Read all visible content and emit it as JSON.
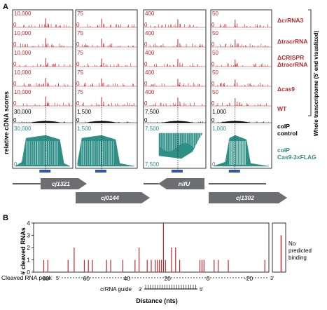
{
  "figure": {
    "panel_a_letter": "A",
    "panel_b_letter": "B",
    "colors": {
      "red": "#c0282d",
      "teal": "#2e8f86",
      "black": "#000000",
      "gray": "#6d6e71"
    }
  },
  "panel_a": {
    "ylabel": "relative cDNA scores",
    "right_bracket_label": "Whole transcriptome (5' end visualized)",
    "row_labels": [
      "ΔcrRNA3",
      "ΔtracrRNA",
      "ΔCRISPR ΔtracrRNA",
      "Δcas9",
      "WT",
      "coIP control",
      "coIP Cas9-3xFLAG"
    ],
    "row_labels_lines": [
      [
        "ΔcrRNA3"
      ],
      [
        "ΔtracrRNA"
      ],
      [
        "ΔCRISPR",
        "ΔtracrRNA"
      ],
      [
        "Δcas9"
      ],
      [
        "WT"
      ],
      [
        "coIP",
        "control"
      ],
      [
        "coIP",
        "Cas9-3xFLAG"
      ]
    ],
    "columns": [
      {
        "scale_labels": [
          "10,000",
          "10,000",
          "10,000",
          "10,000",
          "10,000",
          "30,000",
          "30,000"
        ],
        "zero_label": "0",
        "bottom_label": "0"
      },
      {
        "scale_labels": [
          "75",
          "75",
          "75",
          "75",
          "75",
          "1,500",
          "1,500"
        ],
        "zero_label": "0",
        "bottom_label": "0"
      },
      {
        "scale_labels": [
          "400",
          "400",
          "400",
          "400",
          "400",
          "7,500",
          "7,500"
        ],
        "zero_label": "0",
        "bottom_label": "7,500"
      },
      {
        "scale_labels": [
          "50",
          "50",
          "50",
          "50",
          "50",
          "1,000",
          "1,000"
        ],
        "zero_label": "0",
        "bottom_label": "0"
      }
    ],
    "genes": [
      "cj1321",
      "cj0144",
      "nifU",
      "cj1302"
    ]
  },
  "panel_b": {
    "ylabel": "# cleaved RNAs",
    "xlabel": "Distance (nts)",
    "peak_label": "Cleaved RNA peak",
    "guide_label": "crRNA guide",
    "five_prime": "5'",
    "three_prime": "3'",
    "side_label": "No predicted binding"
  },
  "chart_data": {
    "type": "bar",
    "title": "",
    "xlabel": "Distance (nts)",
    "ylabel": "# cleaved RNAs",
    "ylim": [
      0,
      4
    ],
    "yticks": [
      0,
      1,
      2,
      3,
      4
    ],
    "xlim": [
      86,
      -30
    ],
    "xticks": [
      80,
      60,
      40,
      20,
      0,
      -20
    ],
    "x": [
      81,
      79,
      69,
      66,
      61,
      59,
      57,
      50,
      48,
      42,
      36,
      34,
      30,
      28,
      26,
      25,
      24,
      23,
      22,
      21,
      18,
      16,
      14,
      4,
      3,
      2,
      -3,
      -5,
      -10,
      -28
    ],
    "values": [
      1,
      1,
      1,
      2,
      1,
      1,
      1,
      1,
      1,
      1,
      1,
      2,
      1,
      1,
      1,
      1,
      1,
      1,
      4,
      1,
      2,
      2,
      1,
      1,
      1,
      1,
      1,
      1,
      1,
      1
    ],
    "side_category": "No predicted binding",
    "side_value": 3
  }
}
